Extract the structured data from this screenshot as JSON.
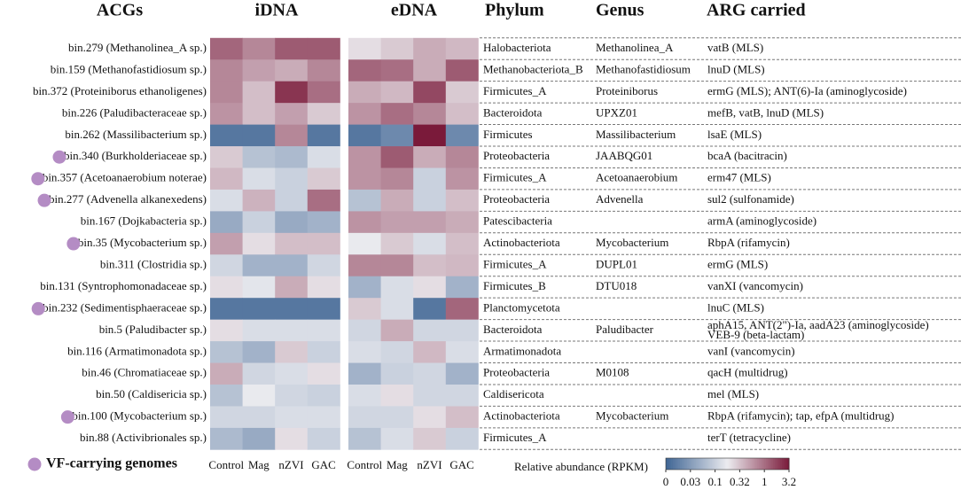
{
  "chart_data": {
    "type": "heatmap",
    "headers": {
      "genomes": "ACGs",
      "phylum": "Phylum",
      "genus": "Genus",
      "arg": "ARG carried"
    },
    "columns": [
      "Control",
      "Mag",
      "nZVI",
      "GAC"
    ],
    "rows": [
      "bin.279 (Methanolinea_A sp.)",
      "bin.159 (Methanofastidiosum sp.)",
      "bin.372 (Proteiniborus ethanoligenes)",
      "bin.226 (Paludibacteraceae sp.)",
      "bin.262 (Massilibacterium sp.)",
      "bin.340 (Burkholderiaceae sp.)",
      "bin.357 (Acetoanaerobium noterae)",
      "bin.277 (Advenella alkanexedens)",
      "bin.167 (Dojkabacteria sp.)",
      "bin.35 (Mycobacterium sp.)",
      "bin.311 (Clostridia sp.)",
      "bin.131 (Syntrophomonadaceae sp.)",
      "bin.232 (Sedimentisphaeraceae sp.)",
      "bin.5 (Paludibacter sp.)",
      "bin.116 (Armatimonadota sp.)",
      "bin.46 (Chromatiaceae sp.)",
      "bin.50 (Caldisericia sp.)",
      "bin.100 (Mycobacterium sp.)",
      "bin.88 (Activibrionales sp.)"
    ],
    "vf_carrying": [
      false,
      false,
      false,
      false,
      false,
      true,
      true,
      true,
      false,
      true,
      false,
      false,
      true,
      false,
      false,
      false,
      false,
      true,
      false
    ],
    "vf_label": "VF-carrying genomes",
    "vf_color": "#b48cc4",
    "panels": [
      {
        "title": "iDNA",
        "values": [
          [
            1.2,
            0.8,
            1.5,
            1.5
          ],
          [
            0.8,
            0.6,
            0.5,
            0.8
          ],
          [
            0.8,
            0.35,
            2.5,
            1.0
          ],
          [
            0.7,
            0.35,
            0.6,
            0.3
          ],
          [
            0.01,
            0.01,
            0.8,
            0.01
          ],
          [
            0.3,
            0.08,
            0.07,
            0.15
          ],
          [
            0.4,
            0.15,
            0.1,
            0.3
          ],
          [
            0.15,
            0.45,
            0.1,
            1.0
          ],
          [
            0.05,
            0.1,
            0.05,
            0.06
          ],
          [
            0.6,
            0.25,
            0.35,
            0.35
          ],
          [
            0.12,
            0.06,
            0.06,
            0.12
          ],
          [
            0.25,
            0.18,
            0.5,
            0.25
          ],
          [
            0.01,
            0.01,
            0.01,
            0.01
          ],
          [
            0.25,
            0.15,
            0.15,
            0.15
          ],
          [
            0.08,
            0.06,
            0.3,
            0.1
          ],
          [
            0.5,
            0.12,
            0.15,
            0.25
          ],
          [
            0.08,
            0.2,
            0.12,
            0.1
          ],
          [
            0.12,
            0.12,
            0.15,
            0.15
          ],
          [
            0.07,
            0.05,
            0.25,
            0.1
          ]
        ]
      },
      {
        "title": "eDNA",
        "values": [
          [
            0.25,
            0.3,
            0.5,
            0.4
          ],
          [
            1.2,
            1.0,
            0.5,
            1.5
          ],
          [
            0.5,
            0.4,
            2.0,
            0.3
          ],
          [
            0.7,
            1.0,
            0.8,
            0.35
          ],
          [
            0.01,
            0.02,
            3.2,
            0.02
          ],
          [
            0.7,
            1.5,
            0.5,
            0.8
          ],
          [
            0.7,
            0.8,
            0.1,
            0.7
          ],
          [
            0.08,
            0.5,
            0.1,
            0.35
          ],
          [
            0.7,
            0.6,
            0.6,
            0.5
          ],
          [
            0.2,
            0.3,
            0.15,
            0.35
          ],
          [
            0.8,
            0.8,
            0.35,
            0.4
          ],
          [
            0.06,
            0.15,
            0.25,
            0.06
          ],
          [
            0.3,
            0.15,
            0.01,
            1.2
          ],
          [
            0.12,
            0.5,
            0.12,
            0.12
          ],
          [
            0.15,
            0.12,
            0.4,
            0.15
          ],
          [
            0.06,
            0.1,
            0.12,
            0.06
          ],
          [
            0.15,
            0.25,
            0.12,
            0.12
          ],
          [
            0.12,
            0.12,
            0.25,
            0.35
          ],
          [
            0.08,
            0.15,
            0.3,
            0.1
          ]
        ]
      }
    ],
    "phylum": [
      "Halobacteriota",
      "Methanobacteriota_B",
      "Firmicutes_A",
      "Bacteroidota",
      "Firmicutes",
      "Proteobacteria",
      "Firmicutes_A",
      "Proteobacteria",
      "Patescibacteria",
      "Actinobacteriota",
      "Firmicutes_A",
      "Firmicutes_B",
      "Planctomycetota",
      "Bacteroidota",
      "Armatimonadota",
      "Proteobacteria",
      "Caldisericota",
      "Actinobacteriota",
      "Firmicutes_A"
    ],
    "genus": [
      "Methanolinea_A",
      "Methanofastidiosum",
      "Proteiniborus",
      "UPXZ01",
      "Massilibacterium",
      "JAABQG01",
      "Acetoanaerobium",
      "Advenella",
      null,
      "Mycobacterium",
      "DUPL01",
      "DTU018",
      null,
      "Paludibacter",
      null,
      "M0108",
      null,
      "Mycobacterium",
      null
    ],
    "arg": [
      "vatB (MLS)",
      "lnuD (MLS)",
      "ermG (MLS); ANT(6)-Ia (aminoglycoside)",
      "mefB, vatB, lnuD (MLS)",
      "lsaE (MLS)",
      "bcaA (bacitracin)",
      "erm47 (MLS)",
      "sul2 (sulfonamide)",
      "armA (aminoglycoside)",
      "RbpA (rifamycin)",
      "ermG (MLS)",
      "vanXI (vancomycin)",
      "lnuC (MLS)",
      [
        "aphA15, ANT(2\")-Ia, aadA23 (aminoglycoside)",
        "VEB-9 (beta-lactam)"
      ],
      "vanI (vancomycin)",
      "qacH (multidrug)",
      "mel (MLS)",
      "RbpA (rifamycin); tap, efpA (multidrug)",
      "terT (tetracycline)"
    ],
    "colorbar": {
      "title": "Relative abundance (RPKM)",
      "lim": [
        0,
        3.2
      ],
      "ticks": [
        0,
        0.03,
        0.1,
        0.32,
        1,
        3.2
      ],
      "colors": [
        "#3f6594",
        "#ececf0",
        "#7a1a3a"
      ]
    }
  }
}
